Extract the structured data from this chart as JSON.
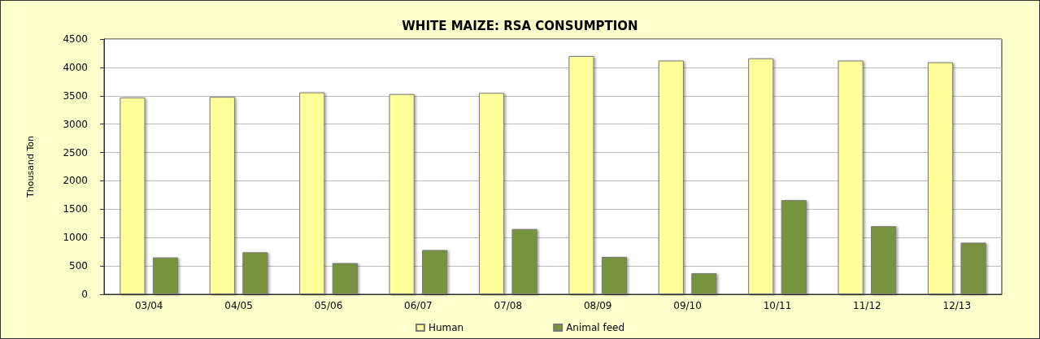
{
  "chart_data": {
    "type": "bar",
    "title": "WHITE MAIZE: RSA CONSUMPTION",
    "ylabel": "Thousand Ton",
    "categories": [
      "03/04",
      "04/05",
      "05/06",
      "06/07",
      "07/08",
      "08/09",
      "09/10",
      "10/11",
      "11/12",
      "12/13"
    ],
    "series": [
      {
        "name": "Human",
        "color": "#ffff99",
        "values": [
          3470,
          3480,
          3560,
          3530,
          3550,
          4200,
          4120,
          4160,
          4120,
          4090
        ]
      },
      {
        "name": "Animal feed",
        "color": "#77933c",
        "values": [
          650,
          740,
          550,
          780,
          1150,
          660,
          370,
          1660,
          1200,
          910
        ]
      }
    ],
    "ylim": [
      0,
      4500
    ],
    "yticks": [
      0,
      500,
      1000,
      1500,
      2000,
      2500,
      3000,
      3500,
      4000,
      4500
    ],
    "grid": "y",
    "legend": "bottom"
  }
}
